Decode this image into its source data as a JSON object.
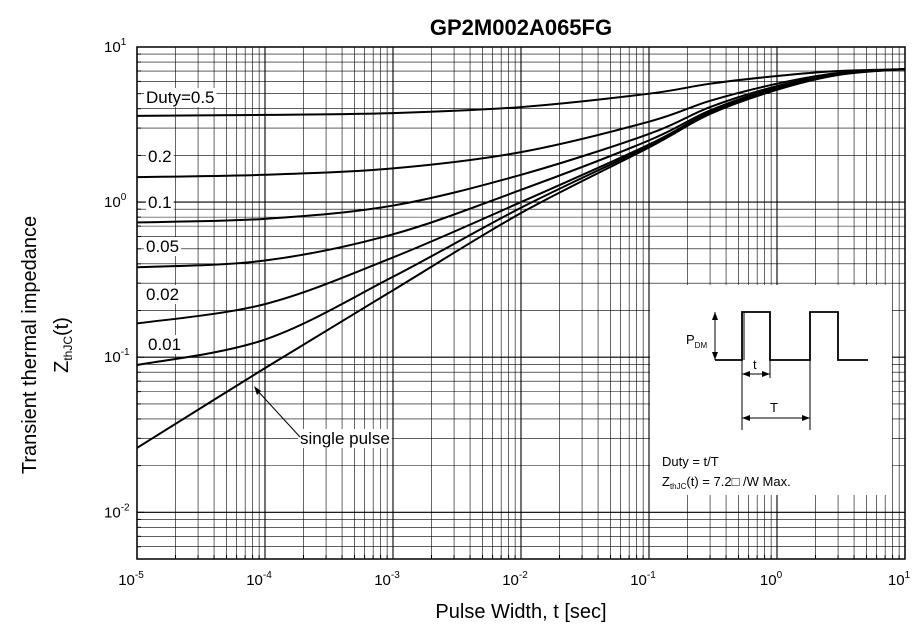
{
  "chart_data": {
    "type": "line",
    "title": "GP2M002A065FG",
    "xlabel": "Pulse Width, t [sec]",
    "ylabel_main": "Transient thermal impedance",
    "ylabel_symbol": "Z",
    "ylabel_subscript": "thJC",
    "ylabel_suffix": "(t)",
    "xscale": "log",
    "yscale": "log",
    "xlim": [
      1e-05,
      10
    ],
    "ylim": [
      0.005,
      10
    ],
    "grid": true,
    "x_ticks": [
      {
        "base": "10",
        "exp": "-5",
        "value": 1e-05
      },
      {
        "base": "10",
        "exp": "-4",
        "value": 0.0001
      },
      {
        "base": "10",
        "exp": "-3",
        "value": 0.001
      },
      {
        "base": "10",
        "exp": "-2",
        "value": 0.01
      },
      {
        "base": "10",
        "exp": "-1",
        "value": 0.1
      },
      {
        "base": "10",
        "exp": "0",
        "value": 1
      },
      {
        "base": "10",
        "exp": "1",
        "value": 10
      }
    ],
    "y_ticks": [
      {
        "base": "10",
        "exp": "-2",
        "value": 0.01
      },
      {
        "base": "10",
        "exp": "-1",
        "value": 0.1
      },
      {
        "base": "10",
        "exp": "0",
        "value": 1
      },
      {
        "base": "10",
        "exp": "1",
        "value": 10
      }
    ],
    "series": [
      {
        "name": "Duty=0.5",
        "x": [
          1e-05,
          0.0001,
          0.001,
          0.01,
          0.1,
          0.3,
          1,
          3,
          10
        ],
        "y": [
          3.6,
          3.65,
          3.75,
          4.1,
          5.0,
          5.8,
          6.5,
          7.0,
          7.2
        ]
      },
      {
        "name": "0.2",
        "x": [
          1e-05,
          0.0001,
          0.001,
          0.01,
          0.1,
          0.3,
          1,
          3,
          10
        ],
        "y": [
          1.45,
          1.5,
          1.65,
          2.1,
          3.3,
          4.5,
          5.8,
          6.8,
          7.2
        ]
      },
      {
        "name": "0.1",
        "x": [
          1e-05,
          0.0001,
          0.001,
          0.01,
          0.1,
          0.3,
          1,
          3,
          10
        ],
        "y": [
          0.74,
          0.78,
          0.95,
          1.5,
          2.75,
          4.1,
          5.6,
          6.7,
          7.2
        ]
      },
      {
        "name": "0.05",
        "x": [
          1e-05,
          0.0001,
          0.001,
          0.01,
          0.1,
          0.3,
          1,
          3,
          10
        ],
        "y": [
          0.38,
          0.42,
          0.62,
          1.2,
          2.5,
          3.9,
          5.5,
          6.7,
          7.2
        ]
      },
      {
        "name": "0.02",
        "x": [
          1e-05,
          0.0001,
          0.001,
          0.01,
          0.1,
          0.3,
          1,
          3,
          10
        ],
        "y": [
          0.165,
          0.22,
          0.44,
          1.0,
          2.35,
          3.8,
          5.4,
          6.7,
          7.2
        ]
      },
      {
        "name": "0.01",
        "x": [
          1e-05,
          0.0001,
          0.001,
          0.01,
          0.1,
          0.3,
          1,
          3,
          10
        ],
        "y": [
          0.089,
          0.13,
          0.33,
          0.92,
          2.3,
          3.75,
          5.35,
          6.65,
          7.2
        ]
      },
      {
        "name": "single pulse",
        "x": [
          1e-05,
          0.0001,
          0.001,
          0.01,
          0.1,
          0.3,
          1,
          3,
          10
        ],
        "y": [
          0.026,
          0.085,
          0.27,
          0.85,
          2.25,
          3.7,
          5.3,
          6.6,
          7.2
        ]
      }
    ],
    "series_labels": [
      "Duty=0.5",
      "0.2",
      "0.1",
      "0.05",
      "0.02",
      "0.01",
      "single pulse"
    ],
    "inset": {
      "pdm_symbol": "P",
      "pdm_subscript": "DM",
      "t_label": "t",
      "T_label": "T",
      "duty_text": "Duty = t/T",
      "z_symbol": "Z",
      "z_subscript": "thJC",
      "z_text": "(t) =  7.2□ /W Max."
    }
  }
}
